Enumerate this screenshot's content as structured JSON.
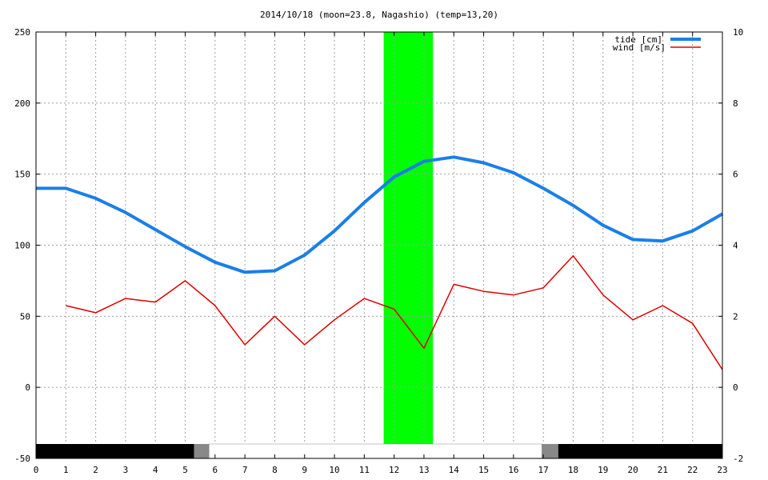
{
  "chart_data": {
    "type": "line",
    "title": "2014/10/18 (moon=23.8, Nagashio) (temp=13,20)",
    "x": [
      0,
      1,
      2,
      3,
      4,
      5,
      6,
      7,
      8,
      9,
      10,
      11,
      12,
      13,
      14,
      15,
      16,
      17,
      18,
      19,
      20,
      21,
      22,
      23
    ],
    "xlim": [
      0,
      23
    ],
    "ylim": [
      -50,
      250
    ],
    "y2lim": [
      -2,
      10
    ],
    "xticks": [
      "0",
      "1",
      "2",
      "3",
      "4",
      "5",
      "6",
      "7",
      "8",
      "9",
      "10",
      "11",
      "12",
      "13",
      "14",
      "15",
      "16",
      "17",
      "18",
      "19",
      "20",
      "21",
      "22",
      "23"
    ],
    "yticks": [
      "-50",
      "0",
      "50",
      "100",
      "150",
      "200",
      "250"
    ],
    "y2ticks": [
      "-2",
      "0",
      "2",
      "4",
      "6",
      "8",
      "10"
    ],
    "grid": true,
    "legend_position": "top-right",
    "series": [
      {
        "name": "tide [cm]",
        "axis": "left",
        "color": "#1a7fe8",
        "values": [
          140,
          140,
          133,
          123,
          111,
          99,
          88,
          81,
          82,
          93,
          110,
          130,
          148,
          159,
          162,
          158,
          151,
          140,
          128,
          114,
          104,
          103,
          110,
          122
        ]
      },
      {
        "name": "wind [m/s]",
        "axis": "right",
        "color": "#e00000",
        "values": [
          null,
          2.3,
          2.1,
          2.5,
          2.4,
          3.0,
          2.3,
          1.2,
          2.0,
          1.2,
          1.9,
          2.5,
          2.2,
          1.1,
          2.9,
          2.7,
          2.6,
          2.8,
          3.7,
          2.6,
          1.9,
          2.3,
          1.8,
          0.5
        ]
      }
    ],
    "highlight_band": {
      "from": 11.65,
      "to": 13.3,
      "color": "#00ff00"
    },
    "day_night_bar": [
      {
        "from": 0,
        "to": 5.3,
        "color": "#000000"
      },
      {
        "from": 5.3,
        "to": 5.8,
        "color": "#888888"
      },
      {
        "from": 5.8,
        "to": 16.95,
        "color": "#ffffff"
      },
      {
        "from": 16.95,
        "to": 17.5,
        "color": "#888888"
      },
      {
        "from": 17.5,
        "to": 23,
        "color": "#000000"
      }
    ]
  }
}
